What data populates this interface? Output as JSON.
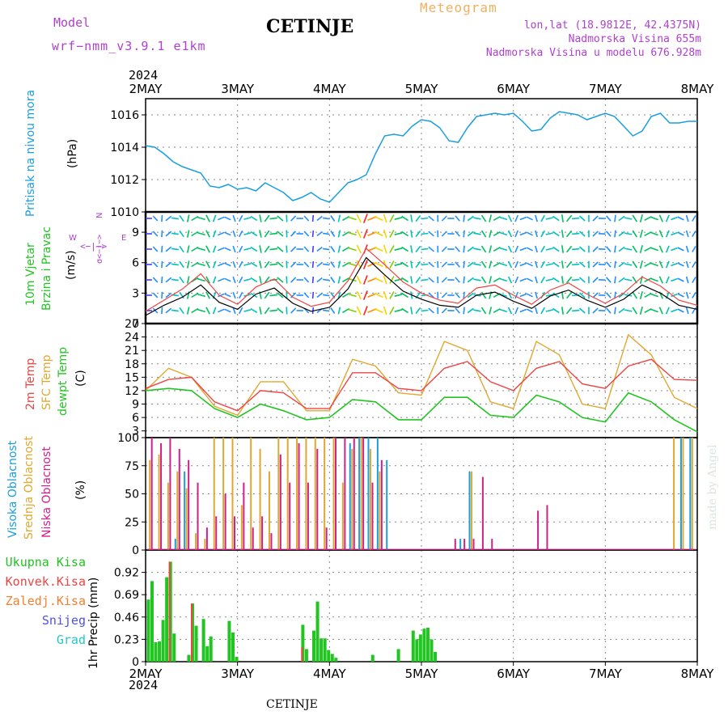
{
  "header": {
    "model_label": "Model",
    "model_name": "wrf−nmm_v3.9.1  e1km",
    "title": "CETINJE",
    "meteogram": "Meteogram",
    "lonlat": "lon,lat (18.9812E, 42.4375N)",
    "elev": "Nadmorska Visina 655m",
    "elev_model": "Nadmorska Visina u modelu 676.928m",
    "year": "2024",
    "footer_title": "CETINJE",
    "made_by": "made by Angel"
  },
  "colors": {
    "pressure": "#1a9ee0",
    "wind_label": "#22c422",
    "temp2m": "#ee4444",
    "sfc": "#e0a830",
    "dewpt": "#22c422",
    "high_cloud": "#1a9ee0",
    "mid_cloud": "#e0a830",
    "low_cloud": "#d0208a",
    "total_precip": "#22c422",
    "conv_precip": "#ee4444",
    "freezing_precip": "#f08030",
    "snow": "#5050e0",
    "hail": "#22c8c8",
    "wind_speed": "#000000",
    "gust": "#ee4444",
    "purple": "#b040d0"
  },
  "chart_data": [
    {
      "type": "line",
      "panel": "pressure",
      "ylabel": "Pritisak na nivou mora",
      "unit": "(hPa)",
      "ylim": [
        1010,
        1017
      ],
      "yticks": [
        "1010",
        "1012",
        "1014",
        "1016"
      ],
      "xticks": [
        "2MAY",
        "3MAY",
        "4MAY",
        "5MAY",
        "6MAY",
        "7MAY",
        "8MAY"
      ],
      "x": [
        0,
        0.1,
        0.2,
        0.3,
        0.4,
        0.5,
        0.6,
        0.7,
        0.8,
        0.9,
        1.0,
        1.1,
        1.2,
        1.3,
        1.4,
        1.5,
        1.6,
        1.7,
        1.8,
        1.9,
        2.0,
        2.1,
        2.2,
        2.3,
        2.4,
        2.5,
        2.6,
        2.7,
        2.8,
        2.9,
        3.0,
        3.1,
        3.2,
        3.3,
        3.4,
        3.5,
        3.6,
        3.7,
        3.8,
        3.9,
        4.0,
        4.1,
        4.2,
        4.3,
        4.4,
        4.5,
        4.6,
        4.7,
        4.8,
        4.9,
        5.0,
        5.1,
        5.2,
        5.3,
        5.4,
        5.5,
        5.6,
        5.7,
        5.8,
        5.9,
        6.0
      ],
      "series": [
        {
          "values": [
            1014.1,
            1014.0,
            1013.6,
            1013.1,
            1012.8,
            1012.6,
            1012.4,
            1011.6,
            1011.5,
            1011.7,
            1011.4,
            1011.5,
            1011.3,
            1011.8,
            1011.5,
            1011.2,
            1010.7,
            1010.9,
            1011.2,
            1010.8,
            1010.6,
            1011.2,
            1011.8,
            1012.0,
            1012.3,
            1013.6,
            1014.7,
            1014.8,
            1014.7,
            1015.3,
            1015.7,
            1015.6,
            1015.2,
            1014.4,
            1014.3,
            1015.2,
            1015.9,
            1016.0,
            1016.1,
            1016.0,
            1016.1,
            1015.6,
            1015.0,
            1015.1,
            1015.8,
            1016.2,
            1016.1,
            1016.0,
            1015.7,
            1015.9,
            1016.1,
            1015.9,
            1015.3,
            1014.7,
            1015.0,
            1015.9,
            1016.1,
            1015.5,
            1015.5,
            1015.6,
            1015.6
          ]
        }
      ]
    },
    {
      "type": "line",
      "panel": "wind",
      "ylabel": "10m Vjetar Brzina i Pravac",
      "ylabel_lines": [
        "10m Vjetar",
        "Brzina i Pravac"
      ],
      "unit": "(m/s)",
      "ylim": [
        0,
        11
      ],
      "yticks": [
        "0",
        "3",
        "6",
        "9"
      ],
      "compass": {
        "n": "N",
        "w": "W",
        "e": "E",
        "arrows": "<−|−>",
        "bottom": "σ<−|−>"
      },
      "x": [
        0,
        0.2,
        0.4,
        0.6,
        0.8,
        1.0,
        1.2,
        1.4,
        1.6,
        1.8,
        2.0,
        2.2,
        2.4,
        2.6,
        2.8,
        3.0,
        3.2,
        3.4,
        3.6,
        3.8,
        4.0,
        4.2,
        4.4,
        4.6,
        4.8,
        5.0,
        5.2,
        5.4,
        5.6,
        5.8,
        6.0
      ],
      "series": [
        {
          "name": "speed",
          "values": [
            0.8,
            1.8,
            2.6,
            3.8,
            2.1,
            1.4,
            2.9,
            3.5,
            2.0,
            1.2,
            1.6,
            3.4,
            6.5,
            4.8,
            3.2,
            2.4,
            1.8,
            1.6,
            2.8,
            3.1,
            2.2,
            1.5,
            2.7,
            3.3,
            2.3,
            1.6,
            2.4,
            3.8,
            3.0,
            1.8,
            1.4
          ]
        },
        {
          "name": "gust",
          "values": [
            1.2,
            2.3,
            3.4,
            4.9,
            2.8,
            1.9,
            3.6,
            4.4,
            2.6,
            1.7,
            2.1,
            4.2,
            7.4,
            5.8,
            4.1,
            3.0,
            2.3,
            2.0,
            3.5,
            3.8,
            2.8,
            1.9,
            3.3,
            4.0,
            2.9,
            2.0,
            3.0,
            4.6,
            3.7,
            2.3,
            1.8
          ]
        }
      ]
    },
    {
      "type": "line",
      "panel": "temperature",
      "ylabel": "2m Temp, SFC Temp, dewpt Temp",
      "ylabel_lines": [
        "2m Temp",
        "SFC Temp",
        "dewpt Temp"
      ],
      "unit": "(C)",
      "ylim": [
        1.5,
        27
      ],
      "yticks": [
        "3",
        "6",
        "9",
        "12",
        "15",
        "18",
        "21",
        "24",
        "27"
      ],
      "x": [
        0,
        0.25,
        0.5,
        0.75,
        1.0,
        1.25,
        1.5,
        1.75,
        2.0,
        2.25,
        2.5,
        2.75,
        3.0,
        3.25,
        3.5,
        3.75,
        4.0,
        4.25,
        4.5,
        4.75,
        5.0,
        5.25,
        5.5,
        5.75,
        6.0
      ],
      "series": [
        {
          "name": "2m Temp",
          "values": [
            12.5,
            14.5,
            15.0,
            9.5,
            7.5,
            12.0,
            11.5,
            8.0,
            8.0,
            16.0,
            16.0,
            12.5,
            12.0,
            17.0,
            18.5,
            14.0,
            12.0,
            17.0,
            18.5,
            13.5,
            12.5,
            17.5,
            19.0,
            14.5,
            14.3
          ]
        },
        {
          "name": "SFC Temp",
          "values": [
            12.0,
            17.0,
            15.0,
            8.5,
            6.5,
            14.0,
            14.0,
            7.5,
            7.5,
            19.0,
            17.5,
            11.5,
            11.0,
            23.0,
            21.0,
            9.5,
            8.0,
            23.0,
            20.0,
            9.0,
            8.0,
            24.5,
            20.0,
            10.5,
            8.0
          ]
        },
        {
          "name": "dewpt Temp",
          "values": [
            12.0,
            12.5,
            12.0,
            8.0,
            6.0,
            9.0,
            7.5,
            5.5,
            6.0,
            10.0,
            9.5,
            5.5,
            5.5,
            10.5,
            10.5,
            6.5,
            6.0,
            11.0,
            9.5,
            6.0,
            5.0,
            11.5,
            9.5,
            5.5,
            2.8
          ]
        }
      ]
    },
    {
      "type": "bar",
      "panel": "cloud",
      "ylabel": "Visoka Oblacnost, Srednja Oblacnost, Niska Oblacnost",
      "ylabel_lines": [
        "Visoka Oblacnost",
        "Srednja Oblacnost",
        "Niska Oblacnost"
      ],
      "unit": "(%)",
      "ylim": [
        0,
        100
      ],
      "yticks": [
        "0",
        "25",
        "50",
        "75",
        "100"
      ],
      "x": [
        0.05,
        0.15,
        0.25,
        0.35,
        0.45,
        0.55,
        0.65,
        0.75,
        0.85,
        0.95,
        1.05,
        1.15,
        1.25,
        1.35,
        1.45,
        1.55,
        1.65,
        1.75,
        1.85,
        1.95,
        2.05,
        2.15,
        2.25,
        2.35,
        2.45,
        2.55,
        2.65,
        2.75,
        2.85,
        2.95,
        3.05,
        3.15,
        3.25,
        3.35,
        3.45,
        3.55,
        3.65,
        3.75,
        3.85,
        3.95,
        4.05,
        4.15,
        4.25,
        4.35,
        4.45,
        4.55,
        4.65,
        4.75,
        4.85,
        4.95,
        5.05,
        5.15,
        5.25,
        5.35,
        5.45,
        5.55,
        5.65,
        5.75,
        5.85,
        5.95
      ],
      "series": [
        {
          "name": "Visoka Oblacnost",
          "values": [
            0,
            0,
            0,
            10,
            70,
            0,
            0,
            0,
            0,
            0,
            0,
            0,
            0,
            0,
            0,
            0,
            0,
            0,
            0,
            0,
            0,
            0,
            95,
            100,
            100,
            100,
            80,
            0,
            0,
            0,
            0,
            0,
            0,
            0,
            10,
            70,
            0,
            0,
            0,
            0,
            0,
            0,
            0,
            0,
            0,
            0,
            0,
            0,
            0,
            0,
            0,
            0,
            0,
            0,
            0,
            0,
            0,
            0,
            100,
            100
          ]
        },
        {
          "name": "Srednja Oblacnost",
          "values": [
            80,
            85,
            60,
            70,
            55,
            15,
            10,
            100,
            100,
            100,
            40,
            100,
            90,
            70,
            100,
            100,
            100,
            100,
            100,
            100,
            100,
            60,
            90,
            100,
            90,
            70,
            0,
            0,
            0,
            0,
            0,
            0,
            0,
            0,
            0,
            70,
            0,
            0,
            0,
            0,
            0,
            0,
            0,
            0,
            0,
            0,
            0,
            0,
            0,
            0,
            0,
            0,
            0,
            0,
            0,
            0,
            0,
            100,
            100,
            100
          ]
        },
        {
          "name": "Niska Oblacnost",
          "values": [
            100,
            95,
            100,
            90,
            80,
            60,
            20,
            30,
            50,
            30,
            60,
            20,
            30,
            15,
            85,
            60,
            95,
            60,
            90,
            20,
            100,
            100,
            100,
            100,
            60,
            80,
            0,
            0,
            0,
            0,
            0,
            0,
            0,
            10,
            10,
            10,
            65,
            10,
            0,
            0,
            0,
            0,
            35,
            40,
            0,
            0,
            0,
            0,
            0,
            0,
            0,
            0,
            0,
            0,
            0,
            0,
            0,
            0,
            0,
            0
          ]
        }
      ]
    },
    {
      "type": "bar",
      "panel": "precip",
      "ylabel": "1hr Precip (mm)",
      "ylabel_lines": [
        "1hr Precip (mm)"
      ],
      "ylim": [
        0,
        1.15
      ],
      "yticks": [
        "0",
        "0.23",
        "0.46",
        "0.69",
        "0.92"
      ],
      "xticks": [
        "2MAY",
        "3MAY",
        "4MAY",
        "5MAY",
        "6MAY",
        "7MAY",
        "8MAY"
      ],
      "legend": [
        "Ukupna Kisa",
        "Konvek.Kisa",
        "Zaledj.Kisa",
        "Snijeg",
        "Grad"
      ],
      "x": [
        0.03,
        0.07,
        0.11,
        0.15,
        0.19,
        0.23,
        0.27,
        0.31,
        0.35,
        0.39,
        0.43,
        0.47,
        0.51,
        0.55,
        0.59,
        0.63,
        0.67,
        0.71,
        0.75,
        0.79,
        0.83,
        0.87,
        0.91,
        0.95,
        0.99,
        1.03,
        1.07,
        1.11,
        1.15,
        1.19,
        1.23,
        1.27,
        1.31,
        1.35,
        1.39,
        1.43,
        1.47,
        1.51,
        1.55,
        1.59,
        1.63,
        1.67,
        1.71,
        1.75,
        1.79,
        1.83,
        1.87,
        1.91,
        1.95,
        1.99,
        2.03,
        2.07,
        2.11,
        2.15,
        2.19,
        2.23,
        2.27,
        2.31,
        2.35,
        2.39,
        2.43,
        2.47,
        2.51,
        2.55,
        2.59,
        2.63,
        2.67,
        2.71,
        2.75,
        2.79,
        2.83,
        2.87,
        2.91,
        2.95,
        2.99,
        3.03,
        3.07,
        3.11,
        3.15,
        3.19,
        3.23,
        3.27,
        3.31,
        3.35,
        3.39,
        3.43,
        3.47,
        3.51,
        3.55,
        3.59,
        3.63,
        3.67,
        3.71
      ],
      "series": [
        {
          "name": "Ukupna Kisa",
          "values": [
            0.64,
            0.83,
            0.2,
            0.21,
            0.43,
            0.87,
            1.03,
            0.29,
            0,
            0,
            0,
            0.07,
            0.6,
            0.37,
            0,
            0.44,
            0.16,
            0.26,
            0,
            0,
            0,
            0,
            0.42,
            0.3,
            0.05,
            0,
            0,
            0,
            0,
            0,
            0,
            0,
            0,
            0,
            0,
            0,
            0,
            0,
            0,
            0,
            0,
            0,
            0.38,
            0.13,
            0,
            0.32,
            0.62,
            0.24,
            0.24,
            0.12,
            0.08,
            0.04,
            0,
            0,
            0,
            0,
            0,
            0,
            0,
            0,
            0,
            0.07,
            0,
            0,
            0,
            0,
            0,
            0,
            0.13,
            0,
            0,
            0,
            0.32,
            0.23,
            0.28,
            0.34,
            0.35,
            0.23,
            0.1,
            0,
            0,
            0,
            0,
            0,
            0,
            0,
            0,
            0,
            0,
            0,
            0,
            0,
            0
          ]
        },
        {
          "name": "Konvek.Kisa",
          "values": [
            0,
            0,
            0,
            0,
            0,
            0,
            1.03,
            0,
            0,
            0,
            0,
            0,
            0.6,
            0,
            0,
            0,
            0,
            0,
            0,
            0,
            0,
            0,
            0,
            0,
            0,
            0,
            0,
            0,
            0,
            0,
            0,
            0,
            0,
            0,
            0,
            0,
            0,
            0,
            0,
            0,
            0,
            0,
            0.15,
            0,
            0,
            0,
            0,
            0,
            0,
            0,
            0,
            0,
            0,
            0,
            0,
            0,
            0,
            0,
            0,
            0,
            0,
            0,
            0,
            0,
            0,
            0,
            0,
            0,
            0,
            0,
            0,
            0,
            0,
            0,
            0,
            0,
            0,
            0,
            0,
            0,
            0,
            0,
            0,
            0,
            0,
            0,
            0,
            0,
            0,
            0,
            0,
            0,
            0
          ]
        }
      ]
    }
  ]
}
